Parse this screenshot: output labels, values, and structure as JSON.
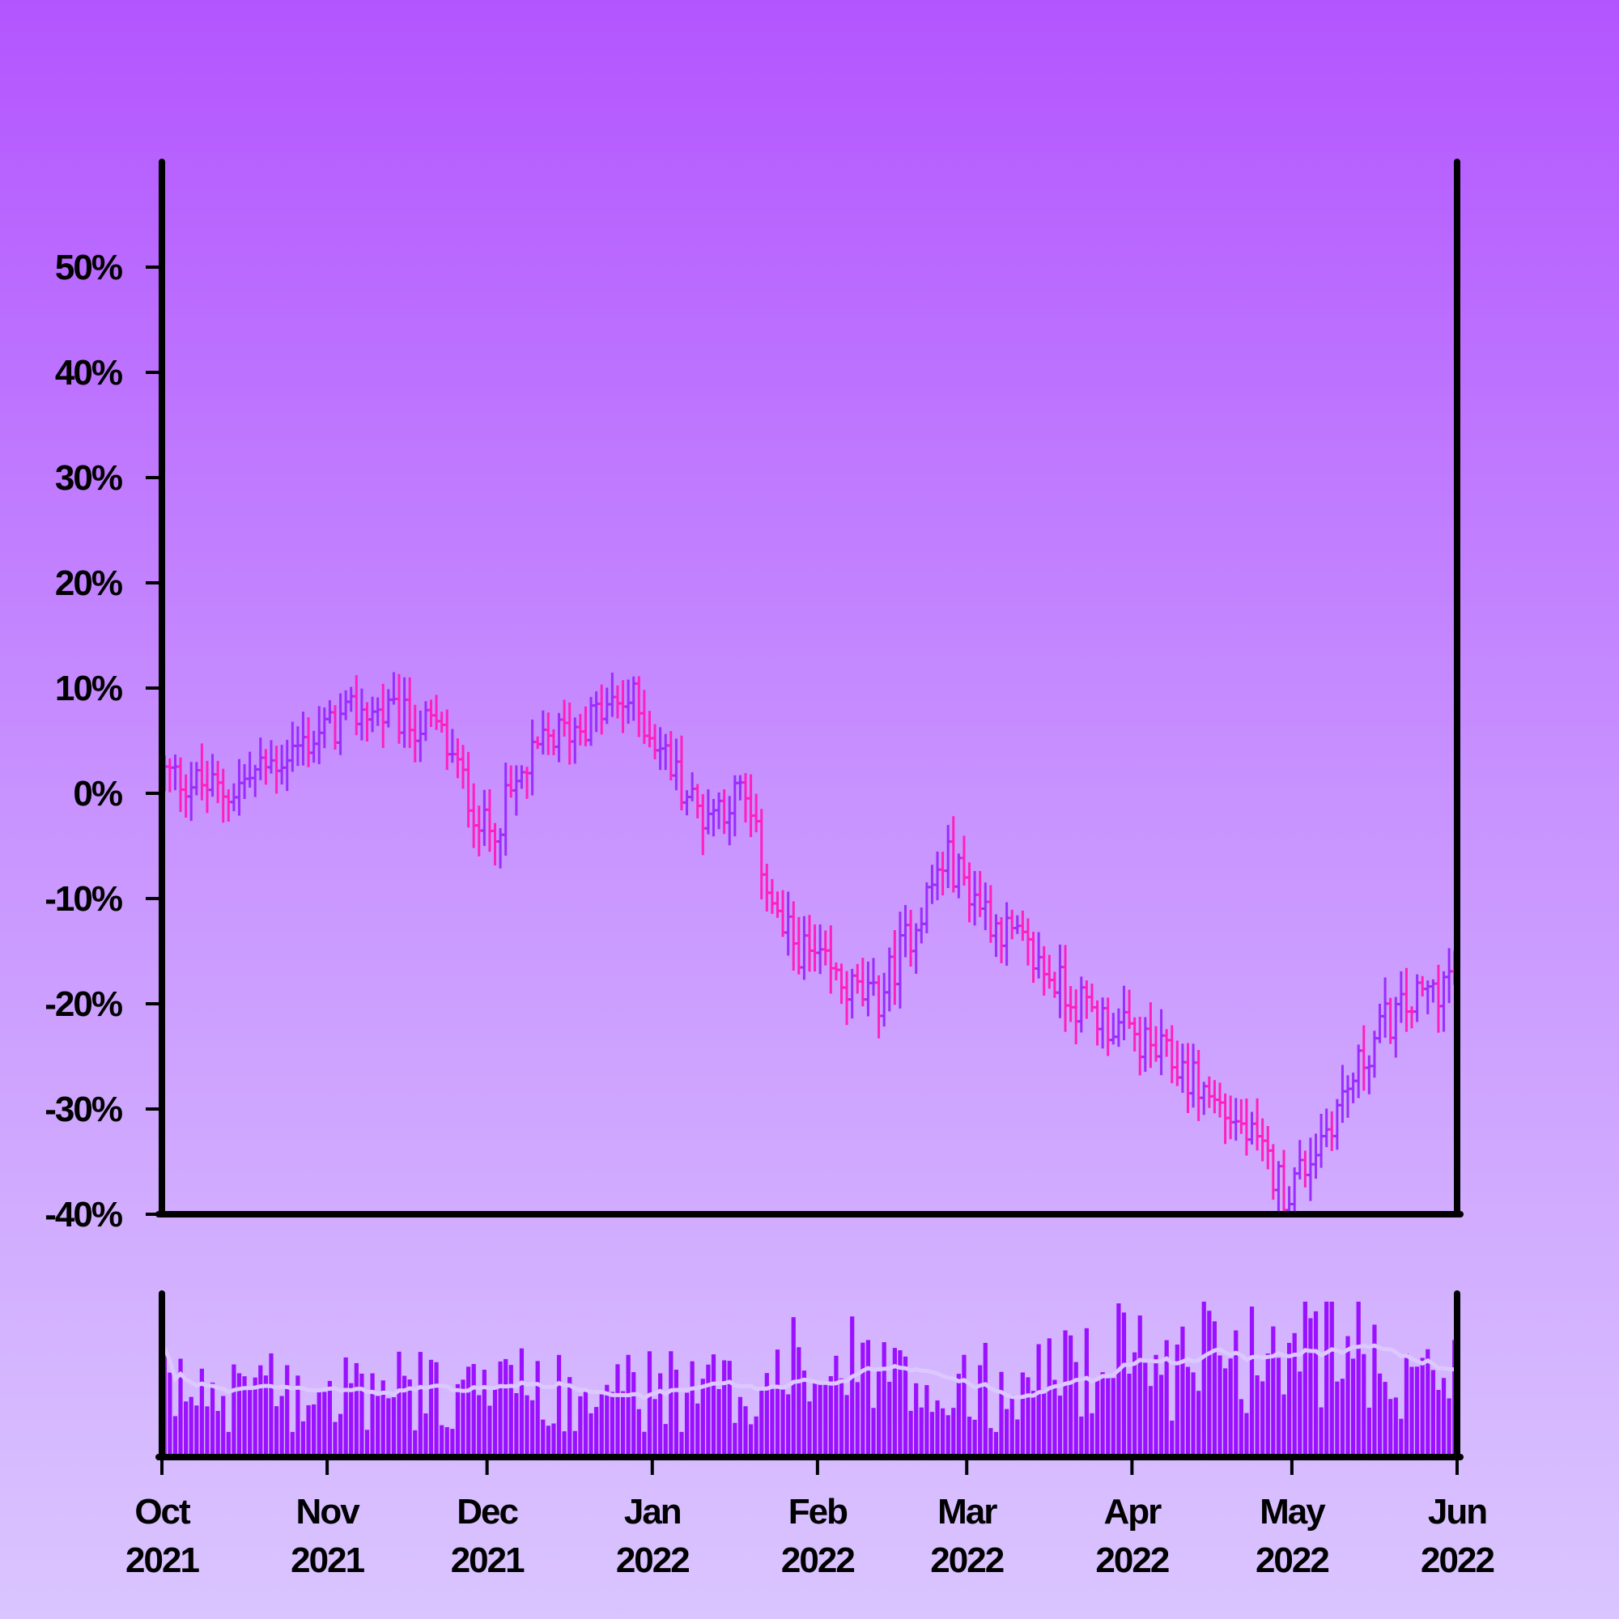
{
  "chart_data": [
    {
      "type": "ohlc",
      "title": "",
      "xlabel": "",
      "ylabel": "",
      "ylim": [
        -40,
        60
      ],
      "y_tick_values": [
        -40,
        -30,
        -20,
        -10,
        0,
        10,
        20,
        30,
        40,
        50
      ],
      "y_tick_labels": [
        "-40%",
        "-30%",
        "-20%",
        "-10%",
        "0%",
        "10%",
        "20%",
        "30%",
        "40%",
        "50%"
      ],
      "x_range": [
        "2021-10-01",
        "2022-06-01"
      ],
      "x_ticks": [
        {
          "date": "2021-10-01",
          "label": [
            "Oct",
            "2021"
          ]
        },
        {
          "date": "2021-11-01",
          "label": [
            "Nov",
            "2021"
          ]
        },
        {
          "date": "2021-12-01",
          "label": [
            "Dec",
            "2021"
          ]
        },
        {
          "date": "2022-01-01",
          "label": [
            "Jan",
            "2022"
          ]
        },
        {
          "date": "2022-02-01",
          "label": [
            "Feb",
            "2022"
          ]
        },
        {
          "date": "2022-03-01",
          "label": [
            "Mar",
            "2022"
          ]
        },
        {
          "date": "2022-04-01",
          "label": [
            "Apr",
            "2022"
          ]
        },
        {
          "date": "2022-05-01",
          "label": [
            "May",
            "2022"
          ]
        },
        {
          "date": "2022-06-01",
          "label": [
            "Jun",
            "2022"
          ]
        }
      ],
      "up_color": "#9a2cff",
      "down_color": "#ff1fbf",
      "trend_points": [
        {
          "date": "2021-10-01",
          "close": 2
        },
        {
          "date": "2021-10-13",
          "close": 0
        },
        {
          "date": "2021-10-25",
          "close": 4
        },
        {
          "date": "2021-11-08",
          "close": 8
        },
        {
          "date": "2021-11-22",
          "close": 6
        },
        {
          "date": "2021-12-01",
          "close": -4
        },
        {
          "date": "2021-12-12",
          "close": 5
        },
        {
          "date": "2021-12-28",
          "close": 9
        },
        {
          "date": "2022-01-10",
          "close": -2
        },
        {
          "date": "2022-01-18",
          "close": 0
        },
        {
          "date": "2022-01-25",
          "close": -13
        },
        {
          "date": "2022-02-05",
          "close": -18
        },
        {
          "date": "2022-02-12",
          "close": -20
        },
        {
          "date": "2022-02-25",
          "close": -6
        },
        {
          "date": "2022-03-06",
          "close": -12
        },
        {
          "date": "2022-03-22",
          "close": -20
        },
        {
          "date": "2022-04-10",
          "close": -26
        },
        {
          "date": "2022-04-22",
          "close": -32
        },
        {
          "date": "2022-04-30",
          "close": -38
        },
        {
          "date": "2022-05-05",
          "close": -34
        },
        {
          "date": "2022-05-18",
          "close": -22
        },
        {
          "date": "2022-06-01",
          "close": -17
        }
      ]
    },
    {
      "type": "bar",
      "series_name": "volume",
      "bar_color": "#9a10ff",
      "moving_average_color": "#dcc8ff",
      "x_range": [
        "2021-10-01",
        "2022-06-01"
      ]
    }
  ]
}
